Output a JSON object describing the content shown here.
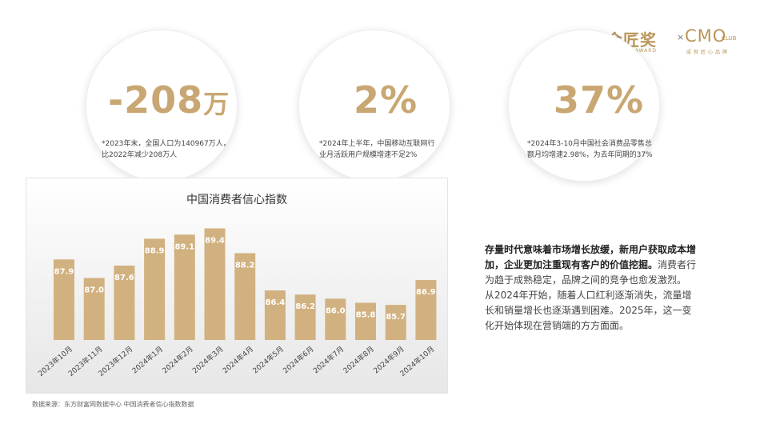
{
  "brand": {
    "name_cn": "金匠奖",
    "cross": "×",
    "partner": "CMO",
    "partner_suffix": "CLUB",
    "name_en": "JINJIANG AWARD",
    "partner_sub": "成就匠心品牌"
  },
  "stats": [
    {
      "value": "-208",
      "unit": "万",
      "note_line1": "*2023年末，全国人口为140967万人，",
      "note_line2": "比2022年减少208万人"
    },
    {
      "value": "2%",
      "unit": "",
      "note_line1": "*2024年上半年，中国移动互联网行",
      "note_line2": "业月活跃用户规模增速不足2%"
    },
    {
      "value": "37%",
      "unit": "",
      "note_line1": "*2024年3-10月中国社会消费品零售总",
      "note_line2": "额月均增速2.98%，为去年同期的37%"
    }
  ],
  "chart_data": {
    "type": "bar",
    "title": "中国消费者信心指数",
    "categories": [
      "2023年10月",
      "2023年11月",
      "2023年12月",
      "2024年1月",
      "2024年2月",
      "2024年3月",
      "2024年4月",
      "2024年5月",
      "2024年6月",
      "2024年7月",
      "2024年8月",
      "2024年9月",
      "2024年10月"
    ],
    "values": [
      87.9,
      87.0,
      87.6,
      88.9,
      89.1,
      89.4,
      88.2,
      86.4,
      86.2,
      86.0,
      85.8,
      85.7,
      86.9
    ],
    "value_labels": [
      "87.9",
      "87.0",
      "87.6",
      "88.9",
      "89.1",
      "89.4",
      "88.2",
      "86.4",
      "86.2",
      "86.0",
      "85.8",
      "85.7",
      "86.9"
    ],
    "ylim": [
      84.0,
      90.0
    ],
    "grid": false,
    "legend": "none",
    "bar_color": "#d2b180",
    "label_color": "#ffffff"
  },
  "source": "数据来源：东方财富网数据中心 中国消费者信心指数数据",
  "paragraph": {
    "bold": "存量时代意味着市场增长放缓，新用户获取成本增加，企业更加注重现有客户的价值挖掘。",
    "p1": "消费者行为趋于成熟稳定，品牌之间的竞争也愈发激烈。",
    "p2": "从2024年开始，随着人口红利逐渐消失，流量增长和销量增长也逐渐遇到困难。2025年，这一变化开始体现在营销端的方方面面。"
  }
}
